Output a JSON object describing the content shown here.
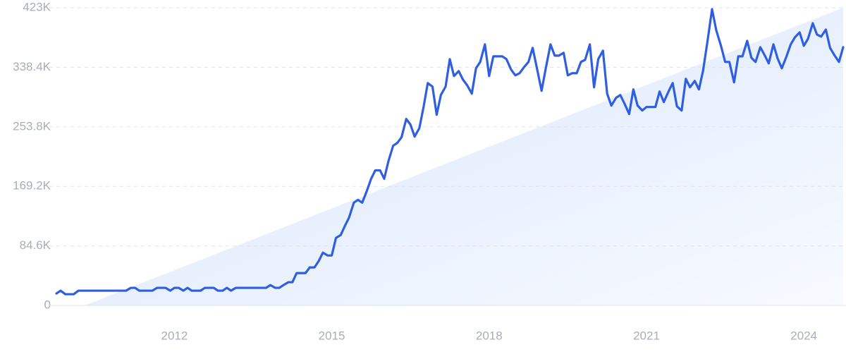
{
  "chart_data": {
    "type": "line",
    "color": "#2f5fe0",
    "x": [
      2009.75,
      2009.83,
      2009.92,
      2010,
      2010.08,
      2010.17,
      2010.25,
      2010.33,
      2010.42,
      2010.5,
      2010.58,
      2010.67,
      2010.75,
      2010.83,
      2010.92,
      2011,
      2011.08,
      2011.17,
      2011.25,
      2011.33,
      2011.42,
      2011.5,
      2011.58,
      2011.67,
      2011.75,
      2011.83,
      2011.92,
      2012,
      2012.08,
      2012.17,
      2012.25,
      2012.33,
      2012.42,
      2012.5,
      2012.58,
      2012.67,
      2012.75,
      2012.83,
      2012.92,
      2013,
      2013.08,
      2013.17,
      2013.25,
      2013.33,
      2013.42,
      2013.5,
      2013.58,
      2013.67,
      2013.75,
      2013.83,
      2013.92,
      2014,
      2014.08,
      2014.17,
      2014.25,
      2014.33,
      2014.42,
      2014.5,
      2014.58,
      2014.67,
      2014.75,
      2014.83,
      2014.92,
      2015,
      2015.08,
      2015.17,
      2015.25,
      2015.33,
      2015.42,
      2015.5,
      2015.58,
      2015.67,
      2015.75,
      2015.83,
      2015.92,
      2016,
      2016.08,
      2016.17,
      2016.25,
      2016.33,
      2016.42,
      2016.5,
      2016.58,
      2016.67,
      2016.75,
      2016.83,
      2016.92,
      2017,
      2017.08,
      2017.17,
      2017.25,
      2017.33,
      2017.42,
      2017.5,
      2017.58,
      2017.67,
      2017.75,
      2017.83,
      2017.92,
      2018,
      2018.08,
      2018.17,
      2018.25,
      2018.33,
      2018.42,
      2018.5,
      2018.58,
      2018.67,
      2018.75,
      2018.83,
      2018.92,
      2019,
      2019.08,
      2019.17,
      2019.25,
      2019.33,
      2019.42,
      2019.5,
      2019.58,
      2019.67,
      2019.75,
      2019.83,
      2019.92,
      2020,
      2020.08,
      2020.17,
      2020.25,
      2020.33,
      2020.42,
      2020.5,
      2020.58,
      2020.67,
      2020.75,
      2020.83,
      2020.92,
      2021,
      2021.08,
      2021.17,
      2021.25,
      2021.33,
      2021.42,
      2021.5,
      2021.58,
      2021.67,
      2021.75,
      2021.83,
      2021.92,
      2022,
      2022.08,
      2022.17,
      2022.25,
      2022.33,
      2022.42,
      2022.5,
      2022.58,
      2022.67,
      2022.75,
      2022.83,
      2022.92,
      2023,
      2023.08,
      2023.17,
      2023.25,
      2023.33,
      2023.42,
      2023.5,
      2023.58,
      2023.67,
      2023.75,
      2023.83,
      2023.92,
      2024,
      2024.08,
      2024.17,
      2024.25,
      2024.33,
      2024.42,
      2024.5,
      2024.58,
      2024.67,
      2024.75
    ],
    "values": [
      17000,
      21000,
      16000,
      16000,
      16000,
      21000,
      21000,
      21000,
      21000,
      21000,
      21000,
      21000,
      21000,
      21000,
      21000,
      21000,
      21000,
      25000,
      25000,
      21000,
      21000,
      21000,
      21000,
      25000,
      25000,
      25000,
      21000,
      25000,
      25000,
      21000,
      25000,
      21000,
      21000,
      21000,
      25000,
      25000,
      25000,
      21000,
      21000,
      25000,
      21000,
      25000,
      25000,
      25000,
      25000,
      25000,
      25000,
      25000,
      25000,
      29000,
      25000,
      25000,
      29000,
      33000,
      33000,
      46000,
      46000,
      46000,
      54000,
      54000,
      63000,
      75000,
      71000,
      71000,
      96000,
      100000,
      113000,
      125000,
      146000,
      150000,
      146000,
      163000,
      180000,
      192000,
      192000,
      180000,
      205000,
      227000,
      231000,
      239000,
      265000,
      257000,
      240000,
      252000,
      282000,
      316000,
      311000,
      271000,
      299000,
      311000,
      350000,
      326000,
      333000,
      321000,
      313000,
      301000,
      337000,
      346000,
      371000,
      326000,
      354000,
      354000,
      354000,
      350000,
      335000,
      327000,
      330000,
      339000,
      346000,
      366000,
      334000,
      305000,
      337000,
      371000,
      355000,
      355000,
      359000,
      327000,
      330000,
      330000,
      346000,
      349000,
      371000,
      310000,
      350000,
      362000,
      301000,
      284000,
      295000,
      299000,
      287000,
      272000,
      307000,
      284000,
      277000,
      282000,
      282000,
      282000,
      304000,
      289000,
      304000,
      316000,
      283000,
      277000,
      322000,
      310000,
      319000,
      307000,
      334000,
      379000,
      421000,
      391000,
      369000,
      346000,
      346000,
      317000,
      354000,
      354000,
      376000,
      352000,
      346000,
      367000,
      356000,
      344000,
      371000,
      351000,
      337000,
      354000,
      371000,
      381000,
      388000,
      369000,
      379000,
      401000,
      385000,
      382000,
      392000,
      366000,
      356000,
      346000,
      367000
    ],
    "xlim": [
      2009.75,
      2024.75
    ],
    "xticks": [
      2012,
      2015,
      2018,
      2021,
      2024
    ],
    "ylim": [
      0,
      423000
    ],
    "yticks": [
      0,
      {
        "value": 84600,
        "label": "84.6K"
      },
      {
        "value": 169200,
        "label": "169.2K"
      },
      {
        "value": 253800,
        "label": "253.8K"
      },
      {
        "value": 338400,
        "label": "338.4K"
      },
      {
        "value": 423000,
        "label": "423K"
      }
    ],
    "grid": true
  }
}
